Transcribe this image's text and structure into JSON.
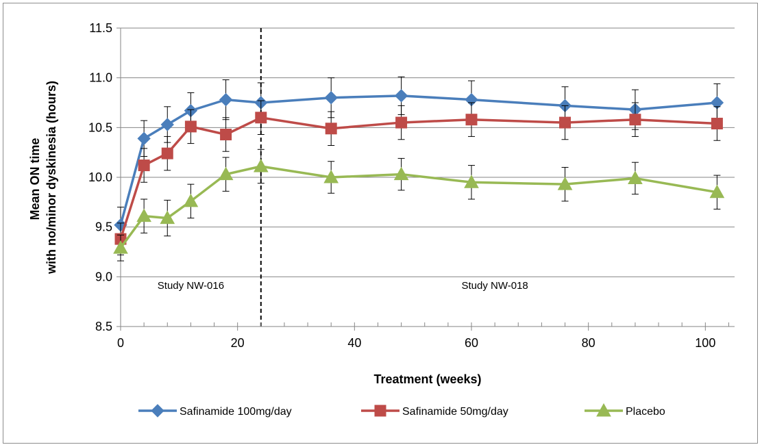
{
  "chart_data": {
    "type": "line",
    "xlabel": "Treatment (weeks)",
    "ylabel_lines": [
      "Mean ON time",
      "with no/minor dyskinesia (hours)"
    ],
    "xlim": [
      0,
      105
    ],
    "ylim": [
      8.5,
      11.5
    ],
    "x_ticks": [
      0,
      20,
      40,
      60,
      80,
      100
    ],
    "x_tick_labels": [
      "0",
      "20",
      "40",
      "60",
      "80",
      "100"
    ],
    "x_minor_ticks": [
      0,
      4,
      8,
      12,
      16,
      20,
      24,
      28,
      32,
      36,
      40,
      44,
      48,
      52,
      56,
      60,
      64,
      68,
      72,
      76,
      80,
      84,
      88,
      92,
      96,
      100,
      104
    ],
    "y_ticks": [
      8.5,
      9.0,
      9.5,
      10.0,
      10.5,
      11.0,
      11.5
    ],
    "y_tick_labels": [
      "8.5",
      "9.0",
      "9.5",
      "10.0",
      "10.5",
      "11.0",
      "11.5"
    ],
    "grid": "horizontal",
    "legend_position": "bottom",
    "divider": {
      "x": 24,
      "style": "dashed"
    },
    "annotations": [
      {
        "text": "Study NW-016",
        "x": 12,
        "y": 8.88
      },
      {
        "text": "Study NW-018",
        "x": 64,
        "y": 8.88
      }
    ],
    "x": [
      0,
      4,
      8,
      12,
      18,
      24,
      36,
      48,
      60,
      76,
      88,
      102
    ],
    "series": [
      {
        "name": "Safinamide 100mg/day",
        "color": "#4a7ebb",
        "marker": "diamond",
        "values": [
          9.52,
          10.39,
          10.53,
          10.67,
          10.78,
          10.75,
          10.8,
          10.82,
          10.78,
          10.72,
          10.68,
          10.75
        ],
        "error": [
          0.18,
          0.18,
          0.18,
          0.18,
          0.2,
          0.2,
          0.2,
          0.19,
          0.19,
          0.19,
          0.2,
          0.19
        ]
      },
      {
        "name": "Safinamide 50mg/day",
        "color": "#be4b48",
        "marker": "square",
        "values": [
          9.38,
          10.12,
          10.24,
          10.51,
          10.43,
          10.6,
          10.49,
          10.55,
          10.58,
          10.55,
          10.58,
          10.54
        ],
        "error": [
          0.16,
          0.17,
          0.17,
          0.17,
          0.17,
          0.17,
          0.17,
          0.17,
          0.17,
          0.17,
          0.17,
          0.17
        ]
      },
      {
        "name": "Placebo",
        "color": "#98b954",
        "marker": "triangle",
        "values": [
          9.29,
          9.61,
          9.59,
          9.76,
          10.03,
          10.11,
          10.0,
          10.03,
          9.95,
          9.93,
          9.99,
          9.85
        ],
        "error": [
          0.13,
          0.17,
          0.18,
          0.17,
          0.17,
          0.17,
          0.16,
          0.16,
          0.17,
          0.17,
          0.16,
          0.17
        ]
      }
    ]
  }
}
